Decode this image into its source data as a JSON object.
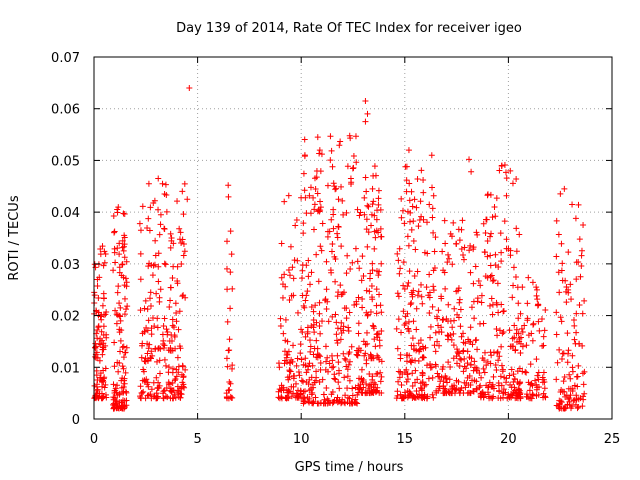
{
  "chart_data": {
    "type": "scatter",
    "title": "Day 139 of 2014, Rate Of TEC Index for receiver igeo",
    "xlabel": "GPS time / hours",
    "ylabel": "ROTI / TECUs",
    "xlim": [
      0,
      25
    ],
    "ylim": [
      0,
      0.07
    ],
    "xticks": [
      "0",
      "5",
      "10",
      "15",
      "20",
      "25"
    ],
    "yticks": [
      "0",
      "0.01",
      "0.02",
      "0.03",
      "0.04",
      "0.05",
      "0.06",
      "0.07"
    ],
    "grid": true,
    "marker": "plus",
    "color": "#ff0000",
    "clusters": [
      {
        "x0": 0.0,
        "x1": 0.6,
        "ymin": 0.004,
        "ymax": 0.034,
        "n": 110
      },
      {
        "x0": 0.9,
        "x1": 1.6,
        "ymin": 0.002,
        "ymax": 0.041,
        "n": 130
      },
      {
        "x0": 2.2,
        "x1": 4.4,
        "ymin": 0.004,
        "ymax": 0.046,
        "n": 240
      },
      {
        "x0": 6.4,
        "x1": 6.7,
        "ymin": 0.004,
        "ymax": 0.046,
        "n": 30
      },
      {
        "x0": 8.9,
        "x1": 10.1,
        "ymin": 0.004,
        "ymax": 0.043,
        "n": 110
      },
      {
        "x0": 10.1,
        "x1": 12.8,
        "ymin": 0.003,
        "ymax": 0.055,
        "n": 300
      },
      {
        "x0": 12.8,
        "x1": 13.9,
        "ymin": 0.005,
        "ymax": 0.049,
        "n": 140
      },
      {
        "x0": 14.6,
        "x1": 16.4,
        "ymin": 0.004,
        "ymax": 0.052,
        "n": 200
      },
      {
        "x0": 16.4,
        "x1": 18.5,
        "ymin": 0.005,
        "ymax": 0.039,
        "n": 190
      },
      {
        "x0": 18.5,
        "x1": 20.6,
        "ymin": 0.004,
        "ymax": 0.05,
        "n": 190
      },
      {
        "x0": 20.3,
        "x1": 21.8,
        "ymin": 0.004,
        "ymax": 0.028,
        "n": 90
      },
      {
        "x0": 22.3,
        "x1": 23.7,
        "ymin": 0.002,
        "ymax": 0.044,
        "n": 120
      }
    ],
    "outliers": [
      {
        "x": 4.6,
        "y": 0.064
      },
      {
        "x": 13.1,
        "y": 0.0615
      },
      {
        "x": 13.2,
        "y": 0.059
      },
      {
        "x": 13.1,
        "y": 0.0575
      },
      {
        "x": 10.8,
        "y": 0.0545
      },
      {
        "x": 10.9,
        "y": 0.052
      },
      {
        "x": 18.1,
        "y": 0.0502
      },
      {
        "x": 18.2,
        "y": 0.0478
      },
      {
        "x": 15.1,
        "y": 0.0488
      },
      {
        "x": 15.2,
        "y": 0.052
      },
      {
        "x": 3.1,
        "y": 0.0465
      },
      {
        "x": 12.4,
        "y": 0.0465
      },
      {
        "x": 4.5,
        "y": 0.0425
      },
      {
        "x": 22.7,
        "y": 0.0445
      },
      {
        "x": 11.8,
        "y": 0.0425
      },
      {
        "x": 9.4,
        "y": 0.0432
      }
    ]
  }
}
